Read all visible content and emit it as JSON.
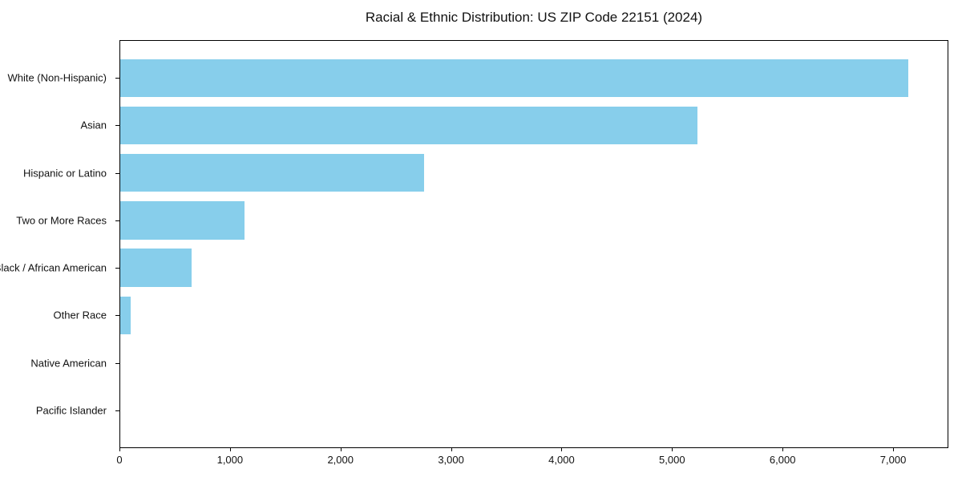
{
  "chart_data": {
    "type": "bar",
    "orientation": "horizontal",
    "title": "Racial & Ethnic Distribution: US ZIP Code 22151 (2024)",
    "xlabel": "",
    "ylabel": "",
    "categories": [
      "White (Non-Hispanic)",
      "Asian",
      "Hispanic or Latino",
      "Two or More Races",
      "Black / African American",
      "Other Race",
      "Native American",
      "Pacific Islander"
    ],
    "values": [
      7145,
      5230,
      2755,
      1125,
      650,
      95,
      0,
      0
    ],
    "xlim": [
      0,
      7500
    ],
    "x_ticks": [
      0,
      1000,
      2000,
      3000,
      4000,
      5000,
      6000,
      7000
    ],
    "x_tick_labels": [
      "0",
      "1,000",
      "2,000",
      "3,000",
      "4,000",
      "5,000",
      "6,000",
      "7,000"
    ],
    "bar_color": "#87CEEB",
    "spine_color": "#000000",
    "background_color": "#ffffff",
    "grid": false,
    "legend": null
  }
}
